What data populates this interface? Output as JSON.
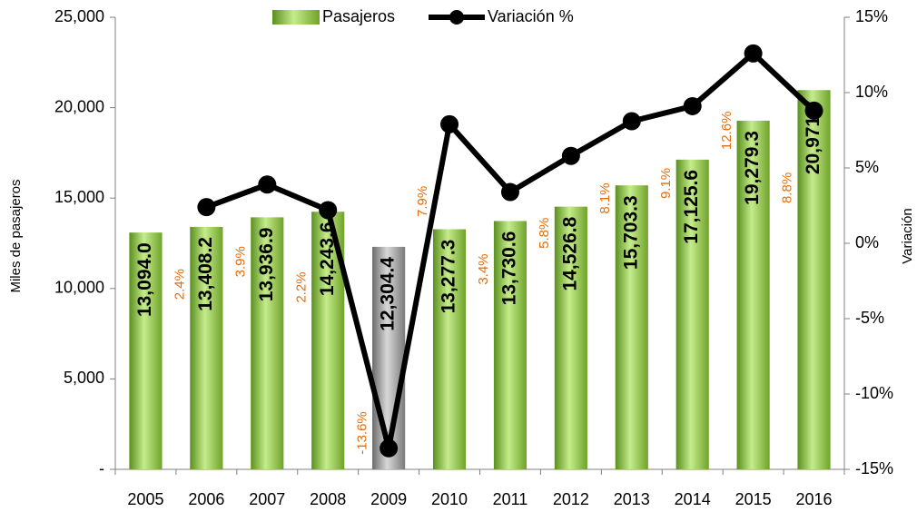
{
  "chart_data": {
    "type": "bar",
    "legend": "top",
    "categories": [
      "2005",
      "2006",
      "2007",
      "2008",
      "2009",
      "2010",
      "2011",
      "2012",
      "2013",
      "2014",
      "2015",
      "2016"
    ],
    "series": [
      {
        "name": "Pasajeros",
        "type": "bar",
        "color": "#8cc63f",
        "colors": [
          "#8cc63f",
          "#8cc63f",
          "#8cc63f",
          "#8cc63f",
          "#9a9a9a",
          "#8cc63f",
          "#8cc63f",
          "#8cc63f",
          "#8cc63f",
          "#8cc63f",
          "#8cc63f",
          "#8cc63f"
        ],
        "values": [
          13094.0,
          13408.2,
          13936.9,
          14243.6,
          12304.4,
          13277.3,
          13730.6,
          14526.8,
          15703.3,
          17125.6,
          19279.3,
          20971.7
        ],
        "value_labels": [
          "13,094.0",
          "13,408.2",
          "13,936.9",
          "14,243.6",
          "12,304.4",
          "13,277.3",
          "13,730.6",
          "14,526.8",
          "15,703.3",
          "17,125.6",
          "19,279.3",
          "20,971.7"
        ]
      },
      {
        "name": "Variación %",
        "type": "line",
        "axis": "y2",
        "color": "#000000",
        "values": [
          null,
          2.4,
          3.9,
          2.2,
          -13.6,
          7.9,
          3.4,
          5.8,
          8.1,
          9.1,
          12.6,
          8.8
        ],
        "value_labels": [
          null,
          "2.4%",
          "3.9%",
          "2.2%",
          "-13.6%",
          "7.9%",
          "3.4%",
          "5.8%",
          "8.1%",
          "9.1%",
          "12.6%",
          "8.8%"
        ]
      }
    ],
    "y_label": "Miles de pasajeros",
    "y2_label": "Variación",
    "ylim": [
      0,
      25000
    ],
    "yticks": [
      {
        "value": 0,
        "label": "-"
      },
      {
        "value": 5000,
        "label": "5,000"
      },
      {
        "value": 10000,
        "label": "10,000"
      },
      {
        "value": 15000,
        "label": "15,000"
      },
      {
        "value": 20000,
        "label": "20,000"
      },
      {
        "value": 25000,
        "label": "25,000"
      }
    ],
    "y2lim": [
      -15,
      15
    ],
    "y2ticks": [
      {
        "value": -15,
        "label": "-15%"
      },
      {
        "value": -10,
        "label": "-10%"
      },
      {
        "value": -5,
        "label": "-5%"
      },
      {
        "value": 0,
        "label": "0%"
      },
      {
        "value": 5,
        "label": "5%"
      },
      {
        "value": 10,
        "label": "10%"
      },
      {
        "value": 15,
        "label": "15%"
      }
    ],
    "grid": false,
    "label_color": "#e46c0a"
  }
}
